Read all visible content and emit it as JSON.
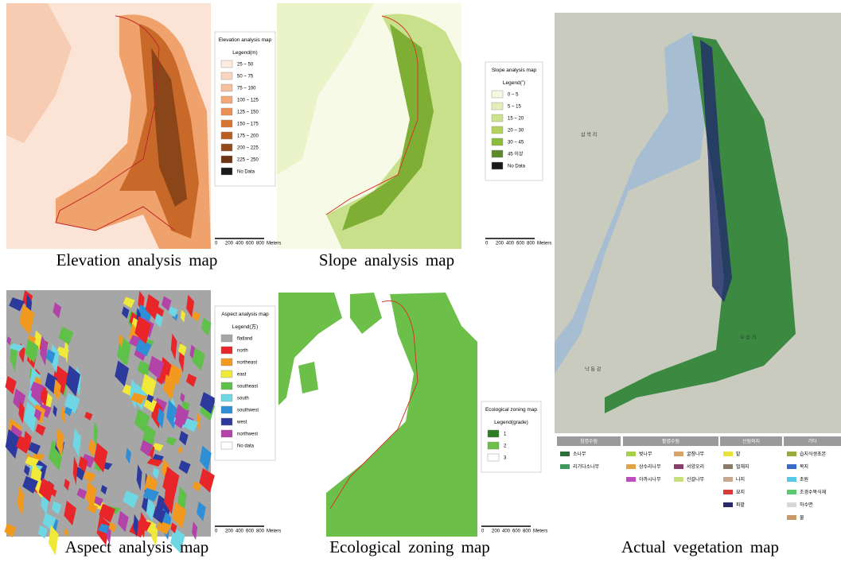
{
  "panels": [
    {
      "caption": "Elevation analysis map",
      "legend": {
        "title": "Elevation analysis map",
        "subtitle": "Legend(m)",
        "items": [
          {
            "label": "25 ~ 50",
            "color": "#fdebe0"
          },
          {
            "label": "50 ~ 75",
            "color": "#f9d6c0"
          },
          {
            "label": "75 ~ 100",
            "color": "#f5c09c"
          },
          {
            "label": "100 ~ 125",
            "color": "#f2a878"
          },
          {
            "label": "125 ~ 150",
            "color": "#ec8f52"
          },
          {
            "label": "150 ~ 175",
            "color": "#d8742f"
          },
          {
            "label": "175 ~ 200",
            "color": "#b85e22"
          },
          {
            "label": "200 ~ 225",
            "color": "#944a1b"
          },
          {
            "label": "225 ~ 250",
            "color": "#6e3414"
          },
          {
            "label": "No Data",
            "color": "#1a1a1a"
          }
        ]
      },
      "scale": [
        "0",
        "200",
        "400",
        "600",
        "800",
        "Meters"
      ]
    },
    {
      "caption": "Slope analysis map",
      "legend": {
        "title": "Slope analysis map",
        "subtitle": "Legend(˚)",
        "items": [
          {
            "label": "0 ~ 5",
            "color": "#f6f9e2"
          },
          {
            "label": "5 ~ 15",
            "color": "#e3efb8"
          },
          {
            "label": "15 ~ 20",
            "color": "#cde38b"
          },
          {
            "label": "20 ~ 30",
            "color": "#b3d35c"
          },
          {
            "label": "30 ~ 45",
            "color": "#8dbd3d"
          },
          {
            "label": "45 이상",
            "color": "#5c8a2b"
          },
          {
            "label": "No Data",
            "color": "#1a1a1a"
          }
        ]
      },
      "scale": [
        "0",
        "200",
        "400",
        "600",
        "800",
        "Meters"
      ]
    },
    {
      "caption": "Aspect analysis map",
      "legend": {
        "title": "Aspect analysis map",
        "subtitle": "Legend(方)",
        "items": [
          {
            "label": "flatland",
            "color": "#a6a6a6"
          },
          {
            "label": "north",
            "color": "#e8262a"
          },
          {
            "label": "northeast",
            "color": "#f29a1f"
          },
          {
            "label": "east",
            "color": "#f1e93a"
          },
          {
            "label": "southeast",
            "color": "#5fc04a"
          },
          {
            "label": "south",
            "color": "#6fd7e4"
          },
          {
            "label": "southwest",
            "color": "#2f8fd6"
          },
          {
            "label": "west",
            "color": "#2b3a9c"
          },
          {
            "label": "northwest",
            "color": "#b243a8"
          },
          {
            "label": "No data",
            "color": "#ffffff"
          }
        ]
      },
      "scale": [
        "0",
        "200",
        "400",
        "600",
        "800",
        "Meters"
      ]
    },
    {
      "caption": "Ecological zoning map",
      "legend": {
        "title": "Ecological zoning map",
        "subtitle": "Legend(grade)",
        "items": [
          {
            "label": "1",
            "color": "#2f7d22"
          },
          {
            "label": "2",
            "color": "#6cc04a"
          },
          {
            "label": "3",
            "color": "#ffffff"
          }
        ]
      },
      "scale": [
        "0",
        "200",
        "400",
        "600",
        "800",
        "Meters"
      ]
    }
  ],
  "vegetation": {
    "caption": "Actual vegetation map",
    "places": [
      "낙 동 강",
      "오 상 리",
      "삼 막 리"
    ],
    "groups": [
      {
        "title": "침엽수림",
        "items": [
          {
            "label": "소나무",
            "color": "#2f6f3a"
          },
          {
            "label": "리기다소나무",
            "color": "#3f9a5a"
          }
        ]
      },
      {
        "title": "활엽수림",
        "items": [
          {
            "label": "벚나무",
            "color": "#a8cf4a"
          },
          {
            "label": "상수리나무",
            "color": "#e0a448"
          },
          {
            "label": "아까시나무",
            "color": "#c04cc0"
          },
          {
            "label": "굴참나무",
            "color": "#d8a46a"
          },
          {
            "label": "서양오리",
            "color": "#8a3c6a"
          },
          {
            "label": "신갈나무",
            "color": "#c8e07a"
          }
        ]
      },
      {
        "title": "산림외지",
        "items": [
          {
            "label": "밭",
            "color": "#e8e43a"
          },
          {
            "label": "벌채지",
            "color": "#8a7a6a"
          },
          {
            "label": "나지",
            "color": "#c8a890"
          },
          {
            "label": "묘지",
            "color": "#d83a3a"
          },
          {
            "label": "파밭",
            "color": "#2a2a6a"
          }
        ]
      },
      {
        "title": "기타",
        "items": [
          {
            "label": "습지식생초본",
            "color": "#9aaa3a"
          },
          {
            "label": "목지",
            "color": "#3a6ac8"
          },
          {
            "label": "초원",
            "color": "#58c8e8"
          },
          {
            "label": "조경수목식재",
            "color": "#5ac870"
          },
          {
            "label": "하수면",
            "color": "#d8d8d8"
          },
          {
            "label": "물",
            "color": "#c89a6a"
          }
        ]
      }
    ]
  }
}
